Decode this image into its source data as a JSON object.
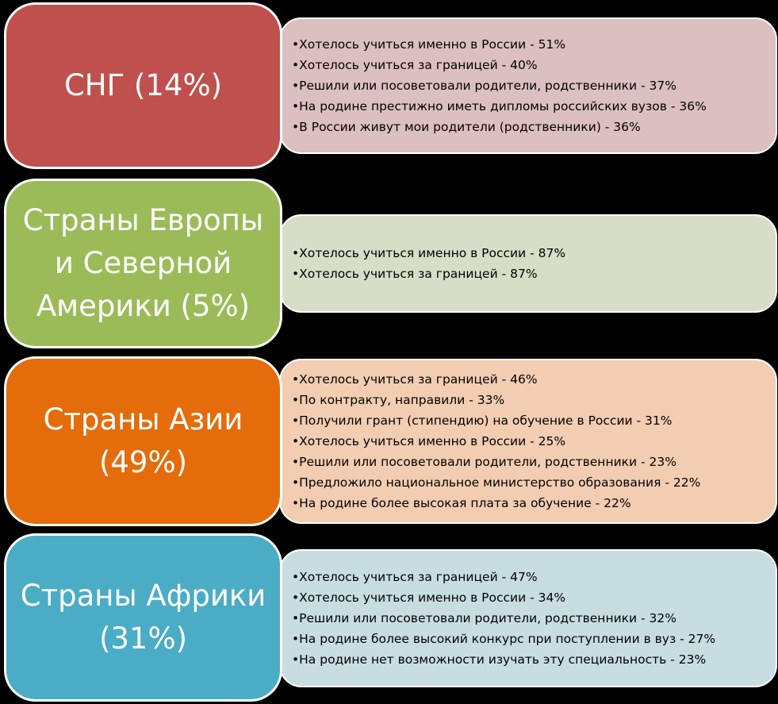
{
  "colors": {
    "background": "#000000",
    "cis": "#C0504D",
    "europe": "#9BBB59",
    "asia": "#E46C0A",
    "africa": "#4BACC6",
    "cis_detail": "#DCBFC1",
    "europe_detail": "#D6DEC8",
    "asia_detail": "#F2CDB2",
    "africa_detail": "#C8DDE2"
  },
  "groups": [
    {
      "title": "СНГ (14%)",
      "items": [
        "Хотелось учиться именно в России - 51%",
        "Хотелось учиться за границей - 40%",
        "Решили или посоветовали родители, родственники - 37%",
        "На родине престижно иметь дипломы российских вузов - 36%",
        "В России живут мои родители (родственники) - 36%"
      ]
    },
    {
      "title": "Страны Европы и Северной Америки (5%)",
      "items": [
        "Хотелось учиться именно в России - 87%",
        "Хотелось учиться за границей - 87%"
      ]
    },
    {
      "title": "Страны Азии (49%)",
      "items": [
        "Хотелось учиться за границей - 46%",
        "По контракту, направили - 33%",
        "Получили грант (стипендию) на обучение в России - 31%",
        "Хотелось учиться именно в России - 25%",
        "Решили или посоветовали родители, родственники - 23%",
        "Предложило национальное министерство образования - 22%",
        "На родине более высокая плата за обучение - 22%"
      ]
    },
    {
      "title": "Страны Африки (31%)",
      "items": [
        "Хотелось учиться за границей - 47%",
        "Хотелось учиться именно в России - 34%",
        "Решили или посоветовали родители, родственники - 32%",
        "На родине более высокий конкурс при поступлении в вуз - 27%",
        "На родине нет возможности изучать эту специальность - 23%"
      ]
    }
  ]
}
